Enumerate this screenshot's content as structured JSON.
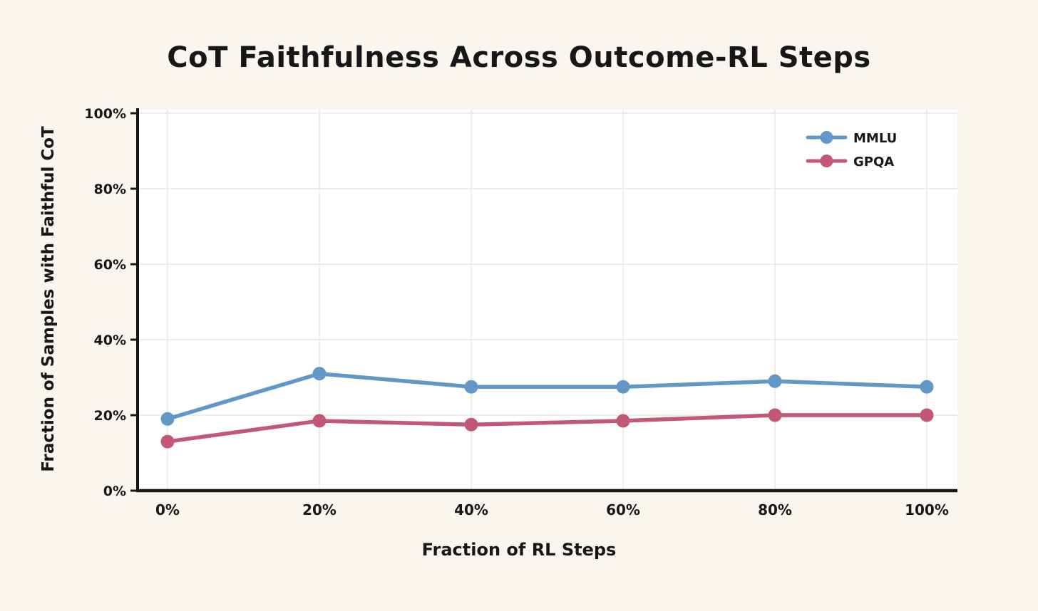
{
  "page": {
    "background_color": "#FAF6EE",
    "plot_background_color": "#FFFFFF",
    "grid_color": "#ECE9E1",
    "axis_color": "#161616",
    "text_color": "#171717"
  },
  "chart_data": {
    "type": "line",
    "title": "CoT Faithfulness Across Outcome-RL Steps",
    "xlabel": "Fraction of RL Steps",
    "ylabel": "Fraction of Samples with Faithful CoT",
    "x": [
      0,
      20,
      40,
      60,
      80,
      100
    ],
    "x_tick_labels": [
      "0%",
      "20%",
      "40%",
      "60%",
      "80%",
      "100%"
    ],
    "y_ticks": [
      0,
      20,
      40,
      60,
      80,
      100
    ],
    "y_tick_labels": [
      "0%",
      "20%",
      "40%",
      "60%",
      "80%",
      "100%"
    ],
    "xlim": [
      0,
      100
    ],
    "ylim": [
      0,
      100
    ],
    "grid": true,
    "legend_position": "top-right",
    "series": [
      {
        "name": "MMLU",
        "color": "#6298C8",
        "values": [
          19,
          31,
          27.5,
          27.5,
          29,
          27.5
        ]
      },
      {
        "name": "GPQA",
        "color": "#C25875",
        "values": [
          13,
          18.5,
          17.5,
          18.5,
          20,
          20
        ]
      }
    ]
  }
}
